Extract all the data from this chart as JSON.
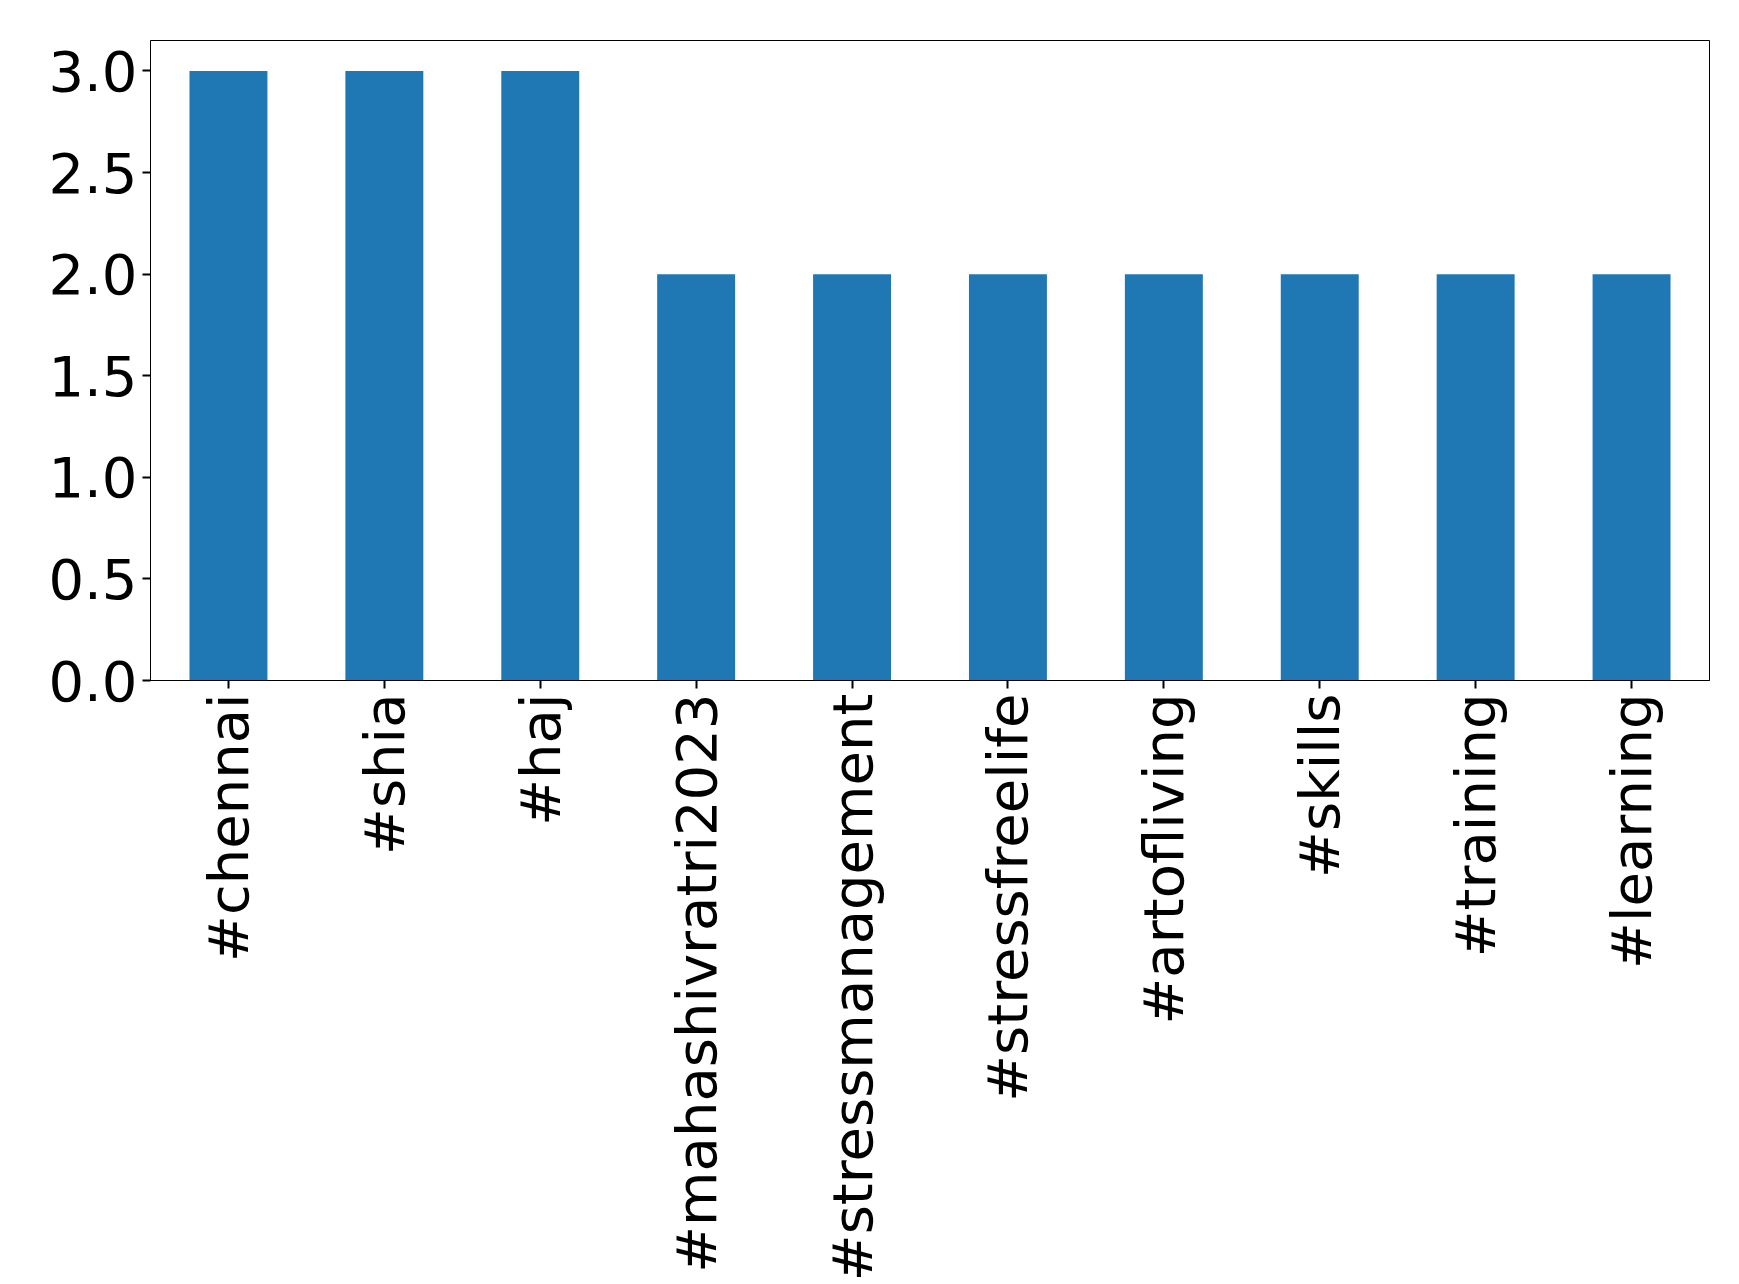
{
  "chart_data": {
    "type": "bar",
    "categories": [
      "#chennai",
      "#shia",
      "#haj",
      "#mahashivratri2023",
      "#stressmanagement",
      "#stressfreelife",
      "#artofliving",
      "#skills",
      "#training",
      "#learning"
    ],
    "values": [
      3,
      3,
      3,
      2,
      2,
      2,
      2,
      2,
      2,
      2
    ],
    "color": "#1f77b4",
    "ylim": [
      0,
      3.15
    ],
    "yticks": [
      {
        "value": 0,
        "label": "0.0"
      },
      {
        "value": 0.5,
        "label": "0.5"
      },
      {
        "value": 1,
        "label": "1.0"
      },
      {
        "value": 1.5,
        "label": "1.5"
      },
      {
        "value": 2,
        "label": "2.0"
      },
      {
        "value": 2.5,
        "label": "2.5"
      },
      {
        "value": 3,
        "label": "3.0"
      }
    ],
    "grid": false
  }
}
